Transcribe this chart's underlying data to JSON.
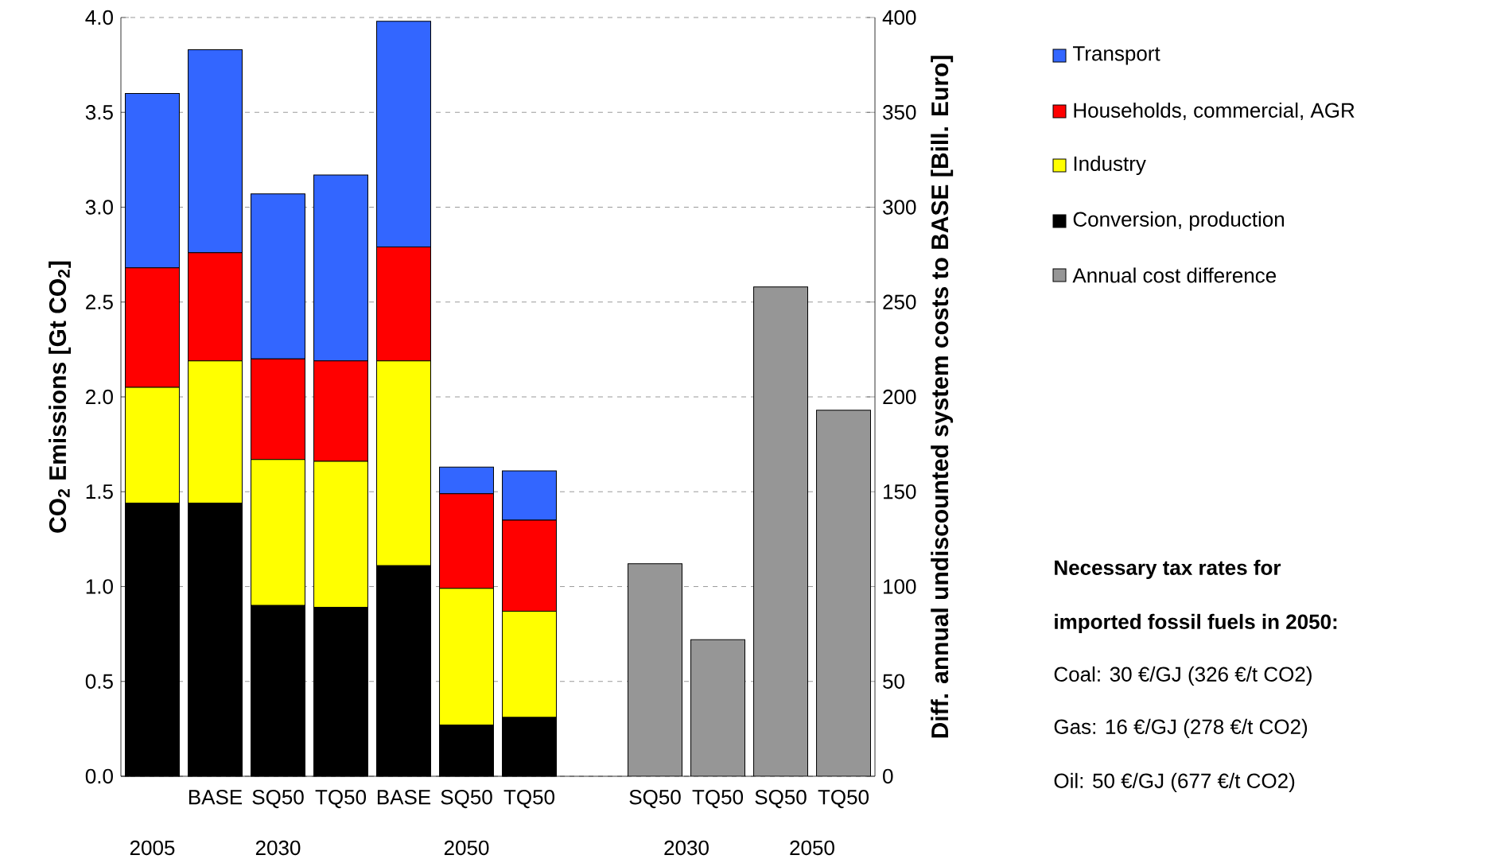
{
  "chart_data": {
    "type": "bar",
    "stacked": true,
    "categories": [
      null,
      "BASE",
      "SQ50",
      "TQ50",
      "BASE",
      "SQ50",
      "TQ50",
      null,
      "SQ50",
      "TQ50",
      "SQ50",
      "TQ50"
    ],
    "series": [
      {
        "name": "Conversion, production",
        "color": "#000000",
        "values": [
          1.44,
          1.44,
          0.9,
          0.89,
          1.11,
          0.27,
          0.31,
          null,
          null,
          null,
          null,
          null
        ]
      },
      {
        "name": "Industry",
        "color": "#ffff00",
        "values": [
          0.61,
          0.75,
          0.77,
          0.77,
          1.08,
          0.72,
          0.56,
          null,
          null,
          null,
          null,
          null
        ]
      },
      {
        "name": "Households, commercial, AGR",
        "color": "#ff0000",
        "values": [
          0.63,
          0.57,
          0.53,
          0.53,
          0.6,
          0.5,
          0.48,
          null,
          null,
          null,
          null,
          null
        ]
      },
      {
        "name": "Transport",
        "color": "#3366ff",
        "values": [
          0.92,
          1.07,
          0.87,
          0.98,
          1.19,
          0.14,
          0.26,
          null,
          null,
          null,
          null,
          null
        ]
      },
      {
        "name": "Annual cost difference",
        "color": "#969696",
        "axis": "y2",
        "values": [
          null,
          null,
          null,
          null,
          null,
          null,
          null,
          null,
          112,
          72,
          258,
          193
        ]
      }
    ],
    "ylabel": "CO$_{2}$ Emissions [Gt CO$_{2}$]",
    "y2label": "Diff. annual undiscounted system costs to BASE [Bill. Euro]",
    "ylim": [
      0,
      4
    ],
    "yticks": [
      {
        "value": 0,
        "label": "0.0"
      },
      {
        "value": 0.5,
        "label": "0.5"
      },
      {
        "value": 1,
        "label": "1.0"
      },
      {
        "value": 1.5,
        "label": "1.5"
      },
      {
        "value": 2,
        "label": "2.0"
      },
      {
        "value": 2.5,
        "label": "2.5"
      },
      {
        "value": 3,
        "label": "3.0"
      },
      {
        "value": 3.5,
        "label": "3.5"
      },
      {
        "value": 4,
        "label": "4.0"
      }
    ],
    "y2lim": [
      0,
      400
    ],
    "y2ticks": [
      0,
      50,
      100,
      150,
      200,
      250,
      300,
      350,
      400
    ],
    "grid": "y",
    "legend": "top right",
    "annotations": [
      "2005",
      "2030",
      "2050",
      "2030",
      "2050",
      "Necessary tax rates for",
      "imported fossil fuels in 2050:",
      "Coal: 30 €/GJ (326 €/t CO2)",
      "Gas:   16 €/GJ (278 €/t CO2)",
      "Oil:      50 €/GJ (677 €/t CO2)"
    ]
  }
}
